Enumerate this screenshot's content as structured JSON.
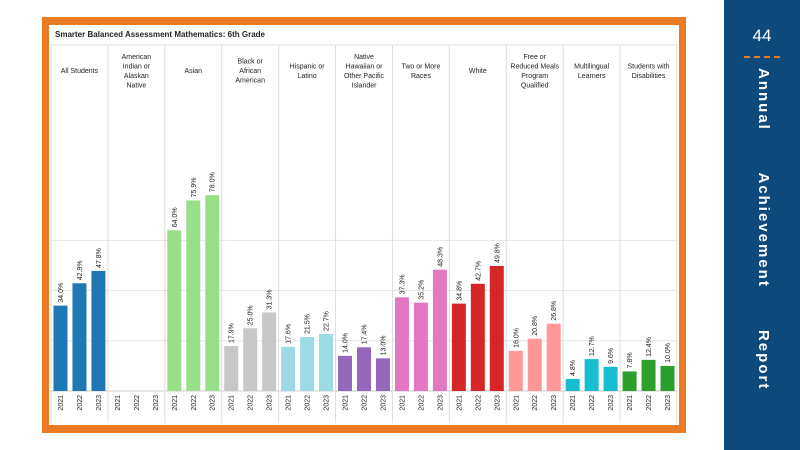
{
  "sidebar": {
    "page_number": "44",
    "title": "Annual Achievement Report"
  },
  "chart_data": {
    "type": "bar",
    "title": "Smarter Balanced Assessment Mathematics: 6th Grade",
    "ylim": [
      0,
      90
    ],
    "grid": true,
    "x_labels": [
      "2021",
      "2022",
      "2023"
    ],
    "groups": [
      {
        "name": "All Students",
        "color": "#1f77b4",
        "values": [
          34.0,
          42.9,
          47.8
        ],
        "labels": [
          "34.0%",
          "42.9%",
          "47.8%"
        ]
      },
      {
        "name": "American Indian or Alaskan Native",
        "color": "#1f77b4",
        "values": [
          null,
          null,
          null
        ],
        "labels": [
          "",
          "",
          ""
        ]
      },
      {
        "name": "Asian",
        "color": "#98df8a",
        "values": [
          64.0,
          75.9,
          78.0
        ],
        "labels": [
          "64.0%",
          "75.9%",
          "78.0%"
        ]
      },
      {
        "name": "Black or African American",
        "color": "#c7c7c7",
        "values": [
          17.9,
          25.0,
          31.3
        ],
        "labels": [
          "17.9%",
          "25.0%",
          "31.3%"
        ]
      },
      {
        "name": "Hispanic or Latino",
        "color": "#9edae5",
        "values": [
          17.6,
          21.5,
          22.7
        ],
        "labels": [
          "17.6%",
          "21.5%",
          "22.7%"
        ]
      },
      {
        "name": "Native Hawaiian or Other Pacific Islander",
        "color": "#9467bd",
        "values": [
          14.0,
          17.4,
          13.0
        ],
        "labels": [
          "14.0%",
          "17.4%",
          "13.0%"
        ]
      },
      {
        "name": "Two or More Races",
        "color": "#e377c2",
        "values": [
          37.3,
          35.2,
          48.3
        ],
        "labels": [
          "37.3%",
          "35.2%",
          "48.3%"
        ]
      },
      {
        "name": "White",
        "color": "#d62728",
        "values": [
          34.8,
          42.7,
          49.8
        ],
        "labels": [
          "34.8%",
          "42.7%",
          "49.8%"
        ]
      },
      {
        "name": "Free or Reduced Meals Program Qualified",
        "color": "#ff9896",
        "values": [
          16.0,
          20.8,
          26.8
        ],
        "labels": [
          "16.0%",
          "20.8%",
          "26.8%"
        ]
      },
      {
        "name": "Multilingual Learners",
        "color": "#17becf",
        "values": [
          4.8,
          12.7,
          9.6
        ],
        "labels": [
          "4.8%",
          "12.7%",
          "9.6%"
        ]
      },
      {
        "name": "Students with Disabilities",
        "color": "#2ca02c",
        "values": [
          7.8,
          12.4,
          10.0
        ],
        "labels": [
          "7.8%",
          "12.4%",
          "10.0%"
        ]
      }
    ]
  }
}
